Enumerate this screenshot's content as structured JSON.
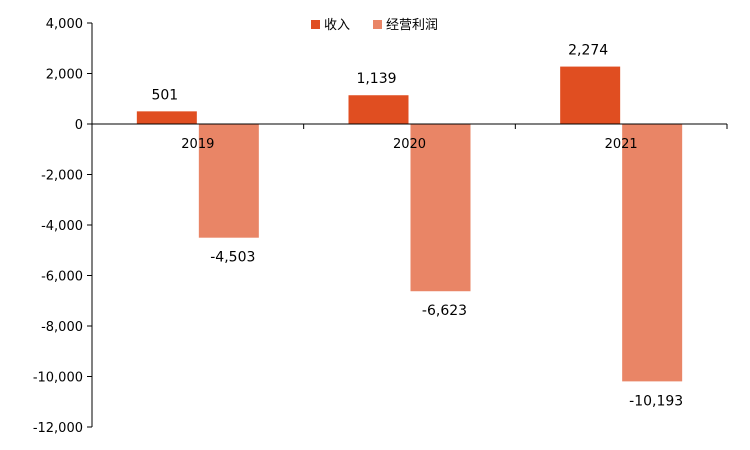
{
  "chart_data": {
    "type": "bar",
    "categories": [
      "2019",
      "2020",
      "2021"
    ],
    "series": [
      {
        "name": "收入",
        "values": [
          501,
          1139,
          2274
        ],
        "color": "#E04E21"
      },
      {
        "name": "经营利润",
        "values": [
          -4503,
          -6623,
          -10193
        ],
        "color": "#E98566"
      }
    ],
    "data_labels": {
      "收入": [
        "501",
        "1,139",
        "2,274"
      ],
      "经营利润": [
        "-4,503",
        "-6,623",
        "-10,193"
      ]
    },
    "y_ticks": [
      "4,000",
      "2,000",
      "0",
      "-2,000",
      "-4,000",
      "-6,000",
      "-8,000",
      "-10,000",
      "-12,000"
    ],
    "y_tick_values": [
      4000,
      2000,
      0,
      -2000,
      -4000,
      -6000,
      -8000,
      -10000,
      -12000
    ],
    "ylim": [
      -12000,
      4000
    ],
    "title": "",
    "xlabel": "",
    "ylabel": "",
    "legend_position": "top-center",
    "grid": false
  }
}
